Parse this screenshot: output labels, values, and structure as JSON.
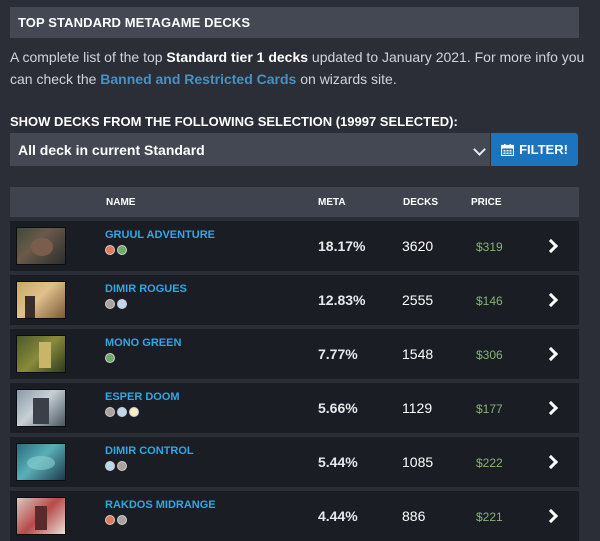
{
  "header": {
    "title": "TOP STANDARD METAGAME DECKS"
  },
  "intro": {
    "text_1": "A complete list of the top ",
    "bold": "Standard tier 1 decks",
    "text_2": " updated to January 2021. For more info you can check the ",
    "link": "Banned and Restricted Cards",
    "text_3": " on wizards site."
  },
  "filter": {
    "heading": "SHOW DECKS FROM THE FOLLOWING SELECTION (19997 SELECTED):",
    "selected": "All deck in current Standard",
    "button_label": "FILTER!"
  },
  "table": {
    "columns": {
      "name": "NAME",
      "meta": "META",
      "decks": "DECKS",
      "price": "PRICE"
    },
    "rows": [
      {
        "name": "GRUUL ADVENTURE",
        "meta": "18.17%",
        "decks": "3620",
        "price": "$319",
        "mana": [
          "red",
          "green"
        ]
      },
      {
        "name": "DIMIR ROGUES",
        "meta": "12.83%",
        "decks": "2555",
        "price": "$146",
        "mana": [
          "black",
          "blue"
        ]
      },
      {
        "name": "MONO GREEN",
        "meta": "7.77%",
        "decks": "1548",
        "price": "$306",
        "mana": [
          "green"
        ]
      },
      {
        "name": "ESPER DOOM",
        "meta": "5.66%",
        "decks": "1129",
        "price": "$177",
        "mana": [
          "black",
          "blue",
          "white"
        ]
      },
      {
        "name": "DIMIR CONTROL",
        "meta": "5.44%",
        "decks": "1085",
        "price": "$222",
        "mana": [
          "blue",
          "black"
        ]
      },
      {
        "name": "RAKDOS MIDRANGE",
        "meta": "4.44%",
        "decks": "886",
        "price": "$221",
        "mana": [
          "red",
          "black"
        ]
      }
    ]
  },
  "colors": {
    "accent_blue": "#1d74be",
    "deck_name": "#2fa8e5",
    "price": "#86b27a",
    "link": "#4a90c2"
  }
}
